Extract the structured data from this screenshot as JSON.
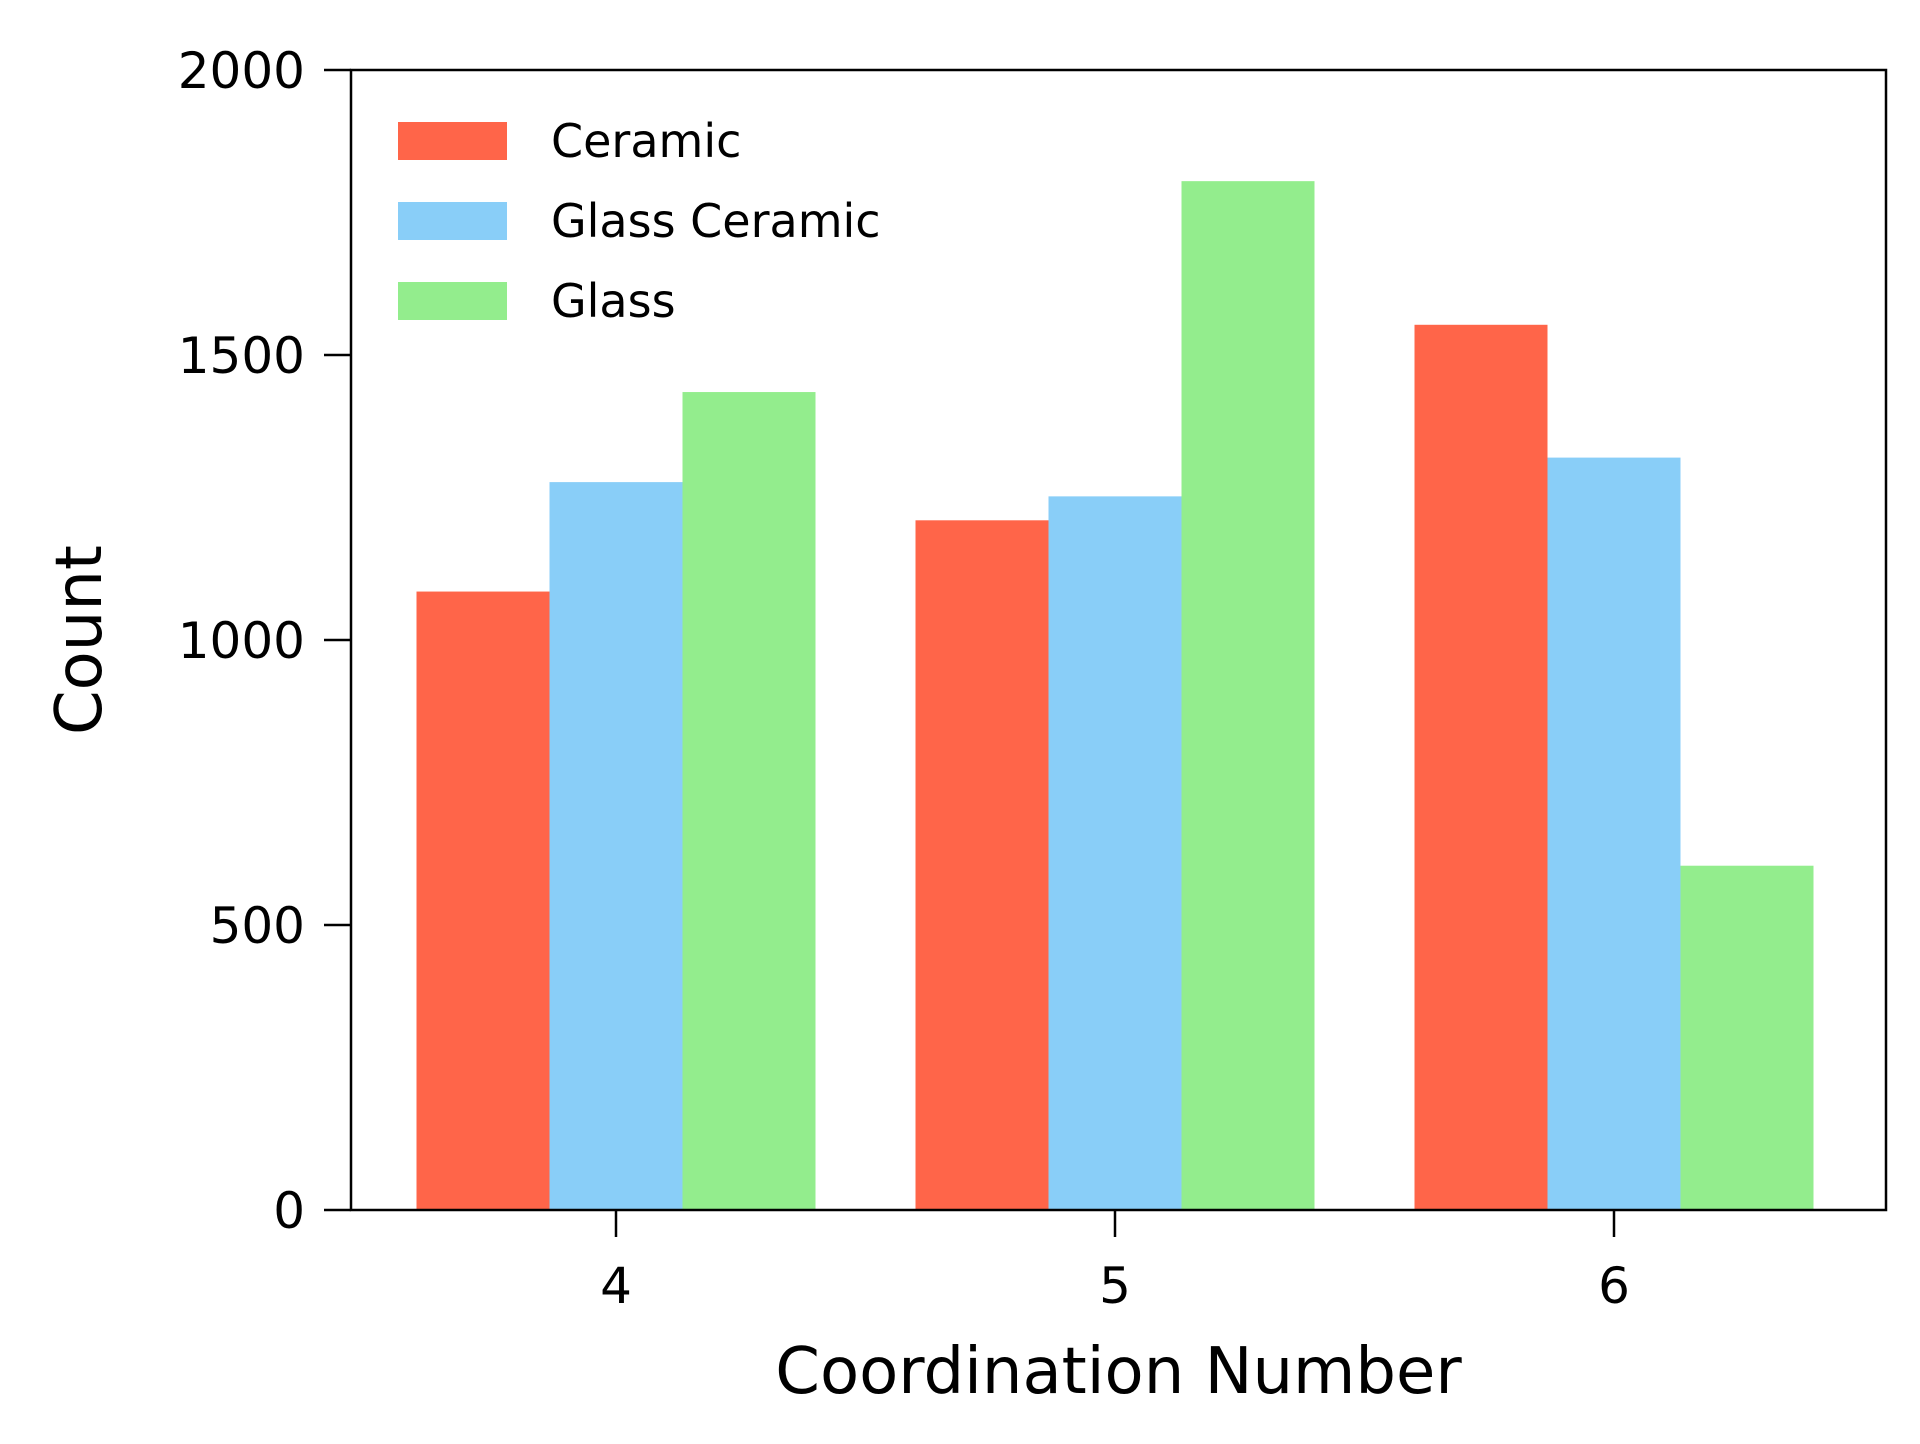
{
  "chart_data": {
    "type": "bar",
    "title": "",
    "xlabel": "Coordination Number",
    "ylabel": "Count",
    "categories": [
      "4",
      "5",
      "6"
    ],
    "series": [
      {
        "name": "Ceramic",
        "color": "#FF6549",
        "values": [
          1085,
          1210,
          1553
        ]
      },
      {
        "name": "Glass Ceramic",
        "color": "#89CEF8",
        "values": [
          1277,
          1252,
          1320
        ]
      },
      {
        "name": "Glass",
        "color": "#93ED8D",
        "values": [
          1435,
          1805,
          604
        ]
      }
    ],
    "ylim": [
      0,
      2000
    ],
    "yticks": [
      "0",
      "500",
      "1000",
      "1500",
      "2000"
    ],
    "grid": false,
    "legend_position": "top-left"
  }
}
